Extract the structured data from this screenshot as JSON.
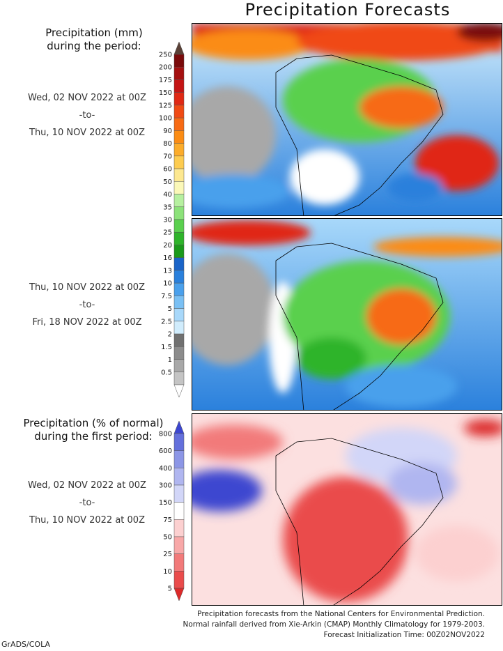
{
  "title": "Precipitation Forecasts",
  "precip_legend": {
    "heading_line1": "Precipitation (mm)",
    "heading_line2": "during the period:",
    "ticks": [
      "250",
      "200",
      "175",
      "150",
      "125",
      "100",
      "90",
      "80",
      "70",
      "60",
      "50",
      "40",
      "35",
      "30",
      "25",
      "20",
      "16",
      "13",
      "10",
      "7.5",
      "5",
      "2.5",
      "2",
      "1.5",
      "1",
      "0.5"
    ],
    "colors": [
      "#5a4036",
      "#7a0a0a",
      "#a51010",
      "#c41414",
      "#e02814",
      "#f04a14",
      "#f76a14",
      "#fb8c14",
      "#fcac2a",
      "#fdcc50",
      "#fde890",
      "#fbf8b8",
      "#b6f0a0",
      "#8ce27a",
      "#5ad04e",
      "#2eb42a",
      "#1a9a1a",
      "#1a64c8",
      "#2a80dc",
      "#4aa0ec",
      "#7ac0f4",
      "#a8d8fa",
      "#d0ecfc",
      "#707070",
      "#8c8c8c",
      "#a8a8a8",
      "#c4c4c4",
      "#ffffff"
    ]
  },
  "period1": {
    "start": "Wed, 02 NOV 2022 at 00Z",
    "sep": "-to-",
    "end": "Thu, 10 NOV 2022 at 00Z"
  },
  "period2": {
    "start": "Thu, 10 NOV 2022 at 00Z",
    "sep": "-to-",
    "end": "Fri, 18 NOV 2022 at 00Z"
  },
  "anomaly_legend": {
    "heading_line1": "Precipitation (% of normal)",
    "heading_line2": "during the first period:",
    "ticks": [
      "800",
      "600",
      "400",
      "300",
      "150",
      "75",
      "50",
      "25",
      "10",
      "5"
    ],
    "colors": [
      "#3c46d0",
      "#6470dc",
      "#8c96e6",
      "#b0b6f0",
      "#d2d6f8",
      "#ffffff",
      "#fcd0d0",
      "#f8a8a8",
      "#f27a7a",
      "#ea4c4c",
      "#dc2a2a"
    ]
  },
  "period3": {
    "start": "Wed, 02 NOV 2022 at 00Z",
    "sep": "-to-",
    "end": "Thu, 10 NOV 2022 at 00Z"
  },
  "footer": {
    "line1": "Precipitation forecasts from the National Centers for Environmental Prediction.",
    "line2": "Normal rainfall derived from Xie-Arkin (CMAP) Monthly Climatology for 1979-2003.",
    "line3": "Forecast Initialization Time: 00Z02NOV2022"
  },
  "credit": "GrADS/COLA"
}
